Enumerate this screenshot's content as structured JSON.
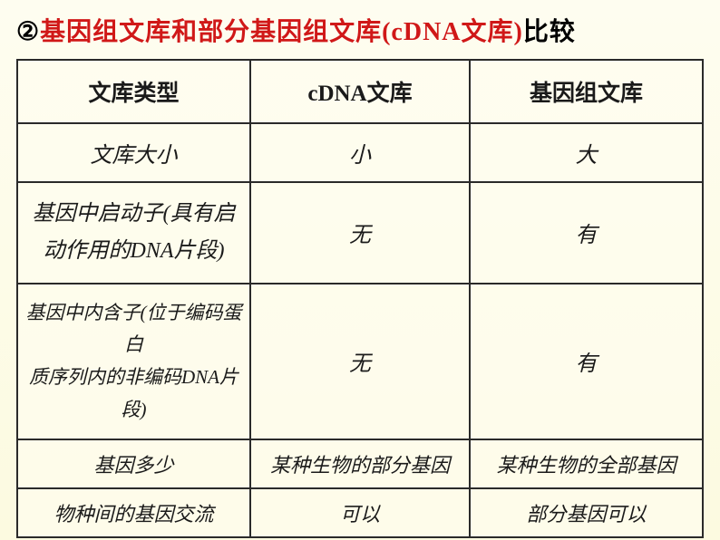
{
  "title": {
    "number": "②",
    "red_text": "基因组文库和部分基因组文库(cDNA文库)",
    "black_text": "比较"
  },
  "table": {
    "headers": {
      "col1": "文库类型",
      "col2": "cDNA文库",
      "col3": "基因组文库"
    },
    "rows": [
      {
        "label": "文库大小",
        "cdna": "小",
        "genomic": "大"
      },
      {
        "label_line1": "基因中启动子(具有启",
        "label_line2": "动作用的DNA片段)",
        "cdna": "无",
        "genomic": "有"
      },
      {
        "label_line1": "基因中内含子(位于编码蛋白",
        "label_line2": "质序列内的非编码DNA片段)",
        "cdna": "无",
        "genomic": "有"
      },
      {
        "label": "基因多少",
        "cdna": "某种生物的部分基因",
        "genomic": "某种生物的全部基因"
      },
      {
        "label": "物种间的基因交流",
        "cdna": "可以",
        "genomic": "部分基因可以"
      }
    ]
  },
  "styles": {
    "title_fontsize": 28,
    "table_fontsize": 24,
    "red_color": "#d01818",
    "black_color": "#000000",
    "border_color": "#2a2a2a",
    "background_color": "#fefdf0"
  }
}
